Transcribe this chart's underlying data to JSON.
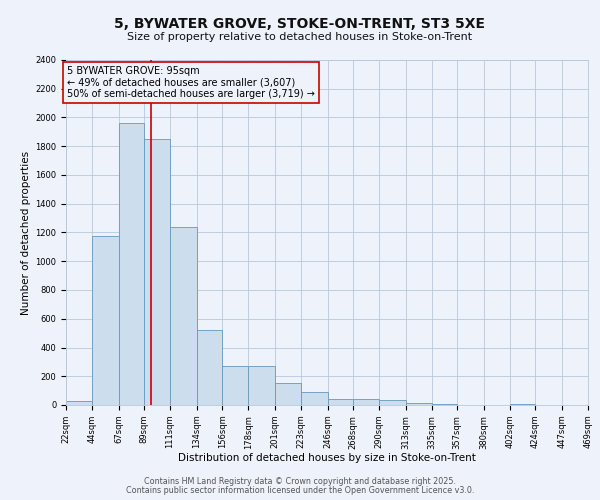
{
  "title": "5, BYWATER GROVE, STOKE-ON-TRENT, ST3 5XE",
  "subtitle": "Size of property relative to detached houses in Stoke-on-Trent",
  "xlabel": "Distribution of detached houses by size in Stoke-on-Trent",
  "ylabel": "Number of detached properties",
  "bar_color": "#ccdded",
  "bar_edge_color": "#6699bb",
  "background_color": "#eef2fa",
  "grid_color": "#b8c8dd",
  "red_line_color": "#cc0000",
  "annotation_box_color": "#cc0000",
  "property_size": 95,
  "bin_edges": [
    22,
    44,
    67,
    89,
    111,
    134,
    156,
    178,
    201,
    223,
    246,
    268,
    290,
    313,
    335,
    357,
    380,
    402,
    424,
    447,
    469
  ],
  "bin_labels": [
    "22sqm",
    "44sqm",
    "67sqm",
    "89sqm",
    "111sqm",
    "134sqm",
    "156sqm",
    "178sqm",
    "201sqm",
    "223sqm",
    "246sqm",
    "268sqm",
    "290sqm",
    "313sqm",
    "335sqm",
    "357sqm",
    "380sqm",
    "402sqm",
    "424sqm",
    "447sqm",
    "469sqm"
  ],
  "counts": [
    25,
    1175,
    1960,
    1850,
    1240,
    520,
    270,
    270,
    155,
    90,
    45,
    40,
    35,
    15,
    8,
    3,
    2,
    8,
    2,
    1
  ],
  "ylim": [
    0,
    2400
  ],
  "annotation_line1": "5 BYWATER GROVE: 95sqm",
  "annotation_line2": "← 49% of detached houses are smaller (3,607)",
  "annotation_line3": "50% of semi-detached houses are larger (3,719) →",
  "footnote1": "Contains HM Land Registry data © Crown copyright and database right 2025.",
  "footnote2": "Contains public sector information licensed under the Open Government Licence v3.0.",
  "title_fontsize": 10,
  "subtitle_fontsize": 8,
  "tick_fontsize": 6,
  "axis_label_fontsize": 7.5,
  "annotation_fontsize": 7,
  "footnote_fontsize": 5.8
}
